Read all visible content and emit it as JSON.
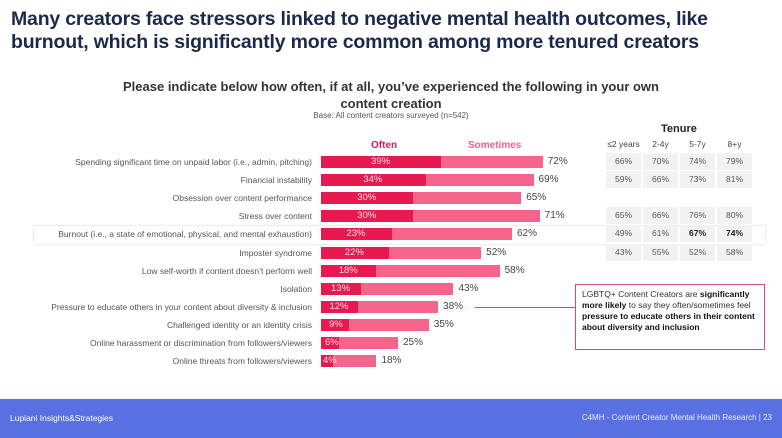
{
  "headline": "Many creators face stressors linked to negative mental health outcomes, like burnout, which is significantly more common among more tenured creators",
  "question": "Please indicate below how often, if at all, you’ve experienced the following in your own content creation",
  "base": "Base: All content creators surveyed (n=542)",
  "legend": {
    "often": "Often",
    "sometimes": "Sometimes"
  },
  "colors": {
    "often": "#e8194f",
    "sometimes": "#f5648a",
    "footer": "#5970e3",
    "headline": "#1b2a4a"
  },
  "chart_data": {
    "type": "bar",
    "orientation": "horizontal-stacked",
    "title": "Please indicate below how often, if at all, you’ve experienced the following in your own content creation",
    "subtitle": "Base: All content creators surveyed (n=542)",
    "categories": [
      "Spending significant time on unpaid labor (i.e., admin, pitching)",
      "Financial instability",
      "Obsession over content performance",
      "Stress over content",
      "Burnout (i.e., a state of emotional, physical, and mental exhaustion)",
      "Imposter syndrome",
      "Low self-worth if content doesn’t perform well",
      "Isolation",
      "Pressure to educate others in your content about diversity & inclusion",
      "Challenged identity or an identity crisis",
      "Online harassment or discrimination from followers/viewers",
      "Online threats from followers/viewers"
    ],
    "series": [
      {
        "name": "Often",
        "values": [
          39,
          34,
          30,
          30,
          23,
          22,
          18,
          13,
          12,
          9,
          6,
          4
        ]
      },
      {
        "name": "Often + Sometimes (total)",
        "values": [
          72,
          69,
          65,
          71,
          62,
          52,
          58,
          43,
          38,
          35,
          25,
          18
        ]
      }
    ],
    "value_format": "%",
    "highlighted_category": "Burnout (i.e., a state of emotional, physical, and mental exhaustion)",
    "legend": [
      "Often",
      "Sometimes"
    ],
    "legend_position": "top"
  },
  "tenure": {
    "title": "Tenure",
    "columns": [
      "≤2 years",
      "2-4y",
      "5-7y",
      "8+y"
    ],
    "rows": [
      {
        "row_index": 0,
        "values": [
          "66%",
          "70%",
          "74%",
          "79%"
        ],
        "bold": [
          false,
          false,
          false,
          false
        ]
      },
      {
        "row_index": 1,
        "values": [
          "59%",
          "66%",
          "73%",
          "81%"
        ],
        "bold": [
          false,
          false,
          false,
          false
        ]
      },
      {
        "row_index": 3,
        "values": [
          "65%",
          "66%",
          "76%",
          "80%"
        ],
        "bold": [
          false,
          false,
          false,
          false
        ]
      },
      {
        "row_index": 4,
        "values": [
          "49%",
          "61%",
          "67%",
          "74%"
        ],
        "bold": [
          false,
          false,
          true,
          true
        ]
      },
      {
        "row_index": 5,
        "values": [
          "43%",
          "55%",
          "52%",
          "58%"
        ],
        "bold": [
          false,
          false,
          false,
          false
        ]
      }
    ]
  },
  "callout": {
    "parts": [
      {
        "text": "LGBTQ+ Content Creators are ",
        "bold": false
      },
      {
        "text": "significantly more likely",
        "bold": true
      },
      {
        "text": " to say they often/sometimes feel ",
        "bold": false
      },
      {
        "text": "pressure to educate others in their content about diversity and inclusion",
        "bold": true
      }
    ]
  },
  "footer": {
    "left": "Lupiani Insights&Strategies",
    "right": "C4MH - Content Creator Mental Health Research  |  23"
  }
}
